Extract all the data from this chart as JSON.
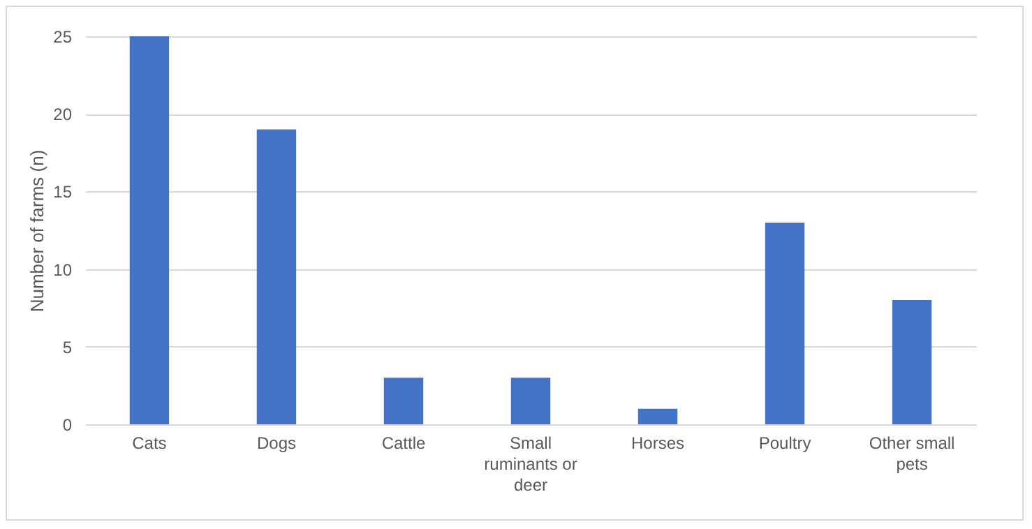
{
  "chart_data": {
    "type": "bar",
    "ylabel": "Number of farms (n)",
    "categories": [
      "Cats",
      "Dogs",
      "Cattle",
      "Small ruminants or deer",
      "Horses",
      "Poultry",
      "Other small pets"
    ],
    "values": [
      25,
      19,
      3,
      3,
      1,
      13,
      8
    ],
    "color": "#4472c4",
    "ylim": [
      0,
      25
    ],
    "yticks": [
      0,
      5,
      10,
      15,
      20,
      25
    ],
    "grid": "y"
  }
}
